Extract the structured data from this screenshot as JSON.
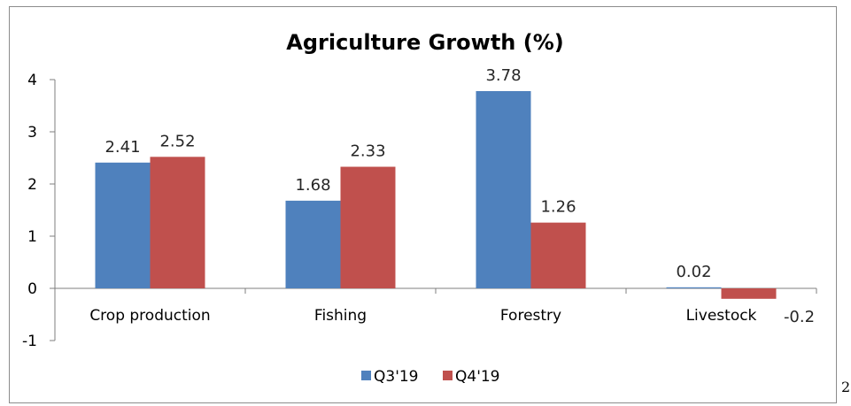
{
  "page_number": "2",
  "chart_data": {
    "type": "bar",
    "title": "Agriculture Growth (%)",
    "xlabel": "",
    "ylabel": "",
    "categories": [
      "Crop production",
      "Fishing",
      "Forestry",
      "Livestock"
    ],
    "series": [
      {
        "name": "Q3'19",
        "values": [
          2.41,
          1.68,
          3.78,
          0.02
        ],
        "labels": [
          "2.41",
          "1.68",
          "3.78",
          "0.02"
        ],
        "color": "#4f81bd"
      },
      {
        "name": "Q4'19",
        "values": [
          2.52,
          2.33,
          1.26,
          -0.2
        ],
        "labels": [
          "2.52",
          "2.33",
          "1.26",
          "-0.2"
        ],
        "color": "#c0504d"
      }
    ],
    "ylim": [
      -1,
      4
    ],
    "yticks": [
      -1,
      0,
      1,
      2,
      3,
      4
    ],
    "ytick_labels": [
      "-1",
      "0",
      "1",
      "2",
      "3",
      "4"
    ],
    "grid": false,
    "legend_position": "bottom"
  }
}
